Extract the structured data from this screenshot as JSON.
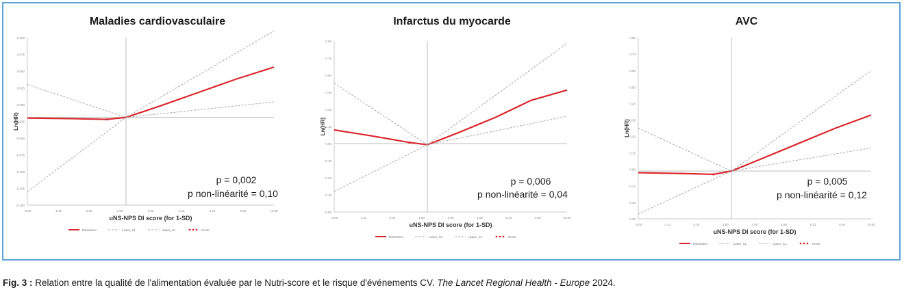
{
  "caption": {
    "label": "Fig. 3 :",
    "text": " Relation entre la qualité de l'alimentation évaluée par le Nutri-score et le risque d'événements CV. ",
    "journal": "The Lancet Regional Health - Europe",
    "year": " 2024."
  },
  "colors": {
    "estimation": "#d9262b",
    "ci": "#a8a8a8",
    "axis": "#c8c8c8",
    "frame": "#5fa3d6"
  },
  "chart_data": [
    {
      "type": "line",
      "title": "Maladies cardiovasculaire",
      "xlabel": "uNS-NPS DI score (for 1-SD)",
      "ylabel": "Ln(HR)",
      "xlim": [
        -3.0,
        10.0
      ],
      "ylim": [
        -0.15,
        0.1
      ],
      "x_ticks": [
        "-3.00",
        "-1.31",
        "0.25",
        "1.60",
        "3.00",
        "4.50",
        "6.13",
        "8.00",
        "10.00"
      ],
      "y_ticks": [
        "0.100",
        "0.075",
        "0.050",
        "0.025",
        "0.000",
        "-0.025",
        "-0.050",
        "-0.075",
        "-0.100",
        "-0.125",
        "-0.150"
      ],
      "series": [
        {
          "name": "Estimation",
          "x": [
            -3.0,
            -0.5,
            1.2,
            2.2,
            4.0,
            6.0,
            8.0,
            10.0
          ],
          "y": [
            -0.02,
            -0.021,
            -0.022,
            -0.019,
            -0.002,
            0.018,
            0.038,
            0.056
          ]
        },
        {
          "name": "Lower_CL",
          "x": [
            -3.0,
            2.2,
            10.0
          ],
          "y": [
            -0.13,
            -0.019,
            0.004
          ]
        },
        {
          "name": "Upper_CL",
          "x": [
            -3.0,
            2.2,
            10.0
          ],
          "y": [
            0.03,
            -0.019,
            0.11
          ]
        },
        {
          "name": "Knots",
          "x": [
            -3.0,
            2.2,
            10.0
          ],
          "y": [
            -0.019,
            -0.019,
            -0.019
          ]
        }
      ],
      "annotations": [
        "p = 0,002",
        "p non-linéarité = 0,10"
      ],
      "legend": {
        "position": "bottom",
        "entries": [
          "Estimation",
          "Lower_CL",
          "Upper_CL",
          "Knots"
        ]
      }
    },
    {
      "type": "line",
      "title": "Infarctus du myocarde",
      "xlabel": "uNS-NPS DI score (for 1-SD)",
      "ylabel": "Ln(HR)",
      "xlim": [
        -3.0,
        10.0
      ],
      "ylim": [
        -0.6,
        0.9
      ],
      "x_ticks": [
        "-3.00",
        "-1.31",
        "0.25",
        "1.60",
        "3.00",
        "4.50",
        "6.13",
        "8.00",
        "10.00"
      ],
      "y_ticks": [
        "0.90",
        "0.75",
        "0.60",
        "0.45",
        "0.30",
        "0.15",
        "0.00",
        "-0.15",
        "-0.30",
        "-0.45",
        "-0.60"
      ],
      "series": [
        {
          "name": "Estimation",
          "x": [
            -3.0,
            -1.0,
            1.2,
            2.2,
            4.0,
            6.0,
            8.0,
            10.0
          ],
          "y": [
            0.12,
            0.07,
            0.01,
            -0.01,
            0.1,
            0.23,
            0.38,
            0.47
          ]
        },
        {
          "name": "Lower_CL",
          "x": [
            -3.0,
            2.2,
            10.0
          ],
          "y": [
            -0.42,
            -0.01,
            0.24
          ]
        },
        {
          "name": "Upper_CL",
          "x": [
            -3.0,
            2.2,
            10.0
          ],
          "y": [
            0.53,
            -0.01,
            0.88
          ]
        },
        {
          "name": "Knots",
          "x": [
            -3.0,
            2.2,
            10.0
          ],
          "y": [
            0.0,
            0.0,
            0.0
          ]
        }
      ],
      "annotations": [
        "p = 0,006",
        "p non-linéarité = 0,04"
      ],
      "legend": {
        "position": "bottom",
        "entries": [
          "Estimation",
          "Lower_CL",
          "Upper_CL",
          "Knots"
        ]
      }
    },
    {
      "type": "line",
      "title": "AVC",
      "xlabel": "uNS-NPS DI score (for 1-SD)",
      "ylabel": "Ln(HR)",
      "xlim": [
        -3.0,
        10.0
      ],
      "ylim": [
        -0.3,
        0.8
      ],
      "x_ticks": [
        "-3.00",
        "-1.31",
        "0.25",
        "1.60",
        "3.00",
        "4.50",
        "6.13",
        "8.00",
        "10.00"
      ],
      "y_ticks": [
        "0.80",
        "0.70",
        "0.60",
        "0.50",
        "0.40",
        "0.30",
        "0.20",
        "0.10",
        "0.00",
        "-0.10",
        "-0.20",
        "-0.30"
      ],
      "series": [
        {
          "name": "Estimation",
          "x": [
            -3.0,
            -0.5,
            1.2,
            2.2,
            4.0,
            6.0,
            8.0,
            10.0
          ],
          "y": [
            -0.02,
            -0.025,
            -0.03,
            -0.01,
            0.07,
            0.16,
            0.25,
            0.33
          ]
        },
        {
          "name": "Lower_CL",
          "x": [
            -3.0,
            2.2,
            10.0
          ],
          "y": [
            -0.27,
            -0.01,
            0.13
          ]
        },
        {
          "name": "Upper_CL",
          "x": [
            -3.0,
            2.2,
            10.0
          ],
          "y": [
            0.25,
            -0.01,
            0.6
          ]
        },
        {
          "name": "Knots",
          "x": [
            -3.0,
            2.2,
            10.0
          ],
          "y": [
            -0.01,
            -0.01,
            -0.01
          ]
        }
      ],
      "annotations": [
        "p = 0,005",
        "p non-linéarité = 0,12"
      ],
      "legend": {
        "position": "bottom",
        "entries": [
          "Estimation",
          "Lower_CL",
          "Upper_CL",
          "Knots"
        ]
      }
    }
  ]
}
